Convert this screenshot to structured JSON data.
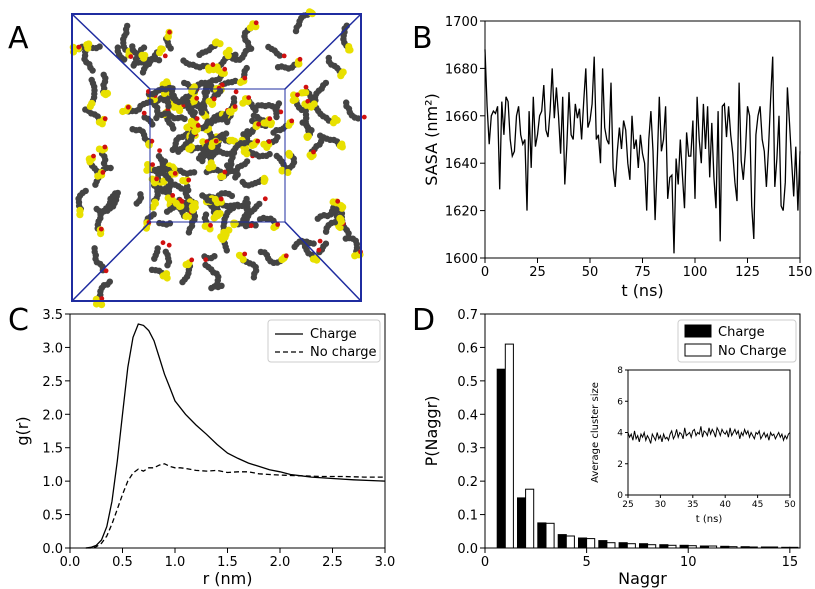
{
  "panels": {
    "a": {
      "letter": "A"
    },
    "b": {
      "letter": "B"
    },
    "c": {
      "letter": "C"
    },
    "d": {
      "letter": "D"
    }
  },
  "colors": {
    "box": "#1f2ca0",
    "carbon": "#444444",
    "sulfur": "#e8e000",
    "oxygen": "#d01010",
    "line": "#000000"
  },
  "chart_data": [
    {
      "id": "B",
      "type": "line",
      "xlabel": "t (ns)",
      "ylabel": "SASA (nm²)",
      "xlim": [
        0,
        150
      ],
      "ylim": [
        1600,
        1700
      ],
      "xticks": [
        0,
        25,
        50,
        75,
        100,
        125,
        150
      ],
      "yticks": [
        1600,
        1620,
        1640,
        1660,
        1680,
        1700
      ],
      "x_start": 0,
      "x_step": 1,
      "y": [
        1688,
        1664,
        1648,
        1660,
        1662,
        1661,
        1664,
        1629,
        1666,
        1652,
        1668,
        1666,
        1650,
        1643,
        1645,
        1660,
        1664,
        1652,
        1648,
        1650,
        1620,
        1662,
        1638,
        1668,
        1647,
        1652,
        1660,
        1662,
        1673,
        1654,
        1651,
        1662,
        1680,
        1659,
        1672,
        1660,
        1644,
        1668,
        1631,
        1648,
        1670,
        1652,
        1650,
        1665,
        1659,
        1663,
        1650,
        1666,
        1680,
        1655,
        1658,
        1665,
        1685,
        1650,
        1652,
        1640,
        1680,
        1655,
        1650,
        1648,
        1674,
        1638,
        1630,
        1645,
        1655,
        1646,
        1658,
        1654,
        1640,
        1633,
        1660,
        1646,
        1650,
        1638,
        1652,
        1644,
        1640,
        1620,
        1650,
        1662,
        1645,
        1616,
        1640,
        1668,
        1645,
        1650,
        1664,
        1625,
        1634,
        1635,
        1602,
        1642,
        1631,
        1650,
        1635,
        1621,
        1653,
        1643,
        1643,
        1658,
        1625,
        1668,
        1650,
        1640,
        1665,
        1646,
        1664,
        1634,
        1657,
        1634,
        1621,
        1662,
        1607,
        1664,
        1665,
        1651,
        1664,
        1652,
        1644,
        1632,
        1624,
        1674,
        1641,
        1633,
        1645,
        1664,
        1660,
        1622,
        1608,
        1652,
        1660,
        1664,
        1650,
        1645,
        1630,
        1646,
        1667,
        1685,
        1630,
        1642,
        1660,
        1622,
        1620,
        1632,
        1672,
        1657,
        1641,
        1626,
        1647,
        1620,
        1645
      ]
    },
    {
      "id": "C",
      "type": "line",
      "xlabel": "r (nm)",
      "ylabel": "g(r)",
      "xlim": [
        0,
        3
      ],
      "ylim": [
        0,
        3.5
      ],
      "xticks": [
        "0.0",
        "0.5",
        "1.0",
        "1.5",
        "2.0",
        "2.5",
        "3.0"
      ],
      "yticks": [
        "0.0",
        "0.5",
        "1.0",
        "1.5",
        "2.0",
        "2.5",
        "3.0",
        "3.5"
      ],
      "legend_position": "top-right",
      "series": [
        {
          "name": "Charge",
          "style": "solid",
          "x": [
            0.15,
            0.2,
            0.25,
            0.3,
            0.35,
            0.4,
            0.45,
            0.5,
            0.55,
            0.6,
            0.65,
            0.7,
            0.75,
            0.8,
            0.85,
            0.9,
            0.95,
            1.0,
            1.1,
            1.2,
            1.3,
            1.4,
            1.5,
            1.6,
            1.7,
            1.8,
            1.9,
            2.0,
            2.1,
            2.2,
            2.3,
            2.5,
            2.7,
            3.0
          ],
          "y": [
            0.0,
            0.01,
            0.04,
            0.12,
            0.32,
            0.7,
            1.3,
            2.0,
            2.7,
            3.15,
            3.35,
            3.33,
            3.25,
            3.1,
            2.85,
            2.6,
            2.4,
            2.2,
            2.0,
            1.84,
            1.7,
            1.55,
            1.42,
            1.34,
            1.27,
            1.22,
            1.17,
            1.14,
            1.1,
            1.08,
            1.06,
            1.04,
            1.02,
            1.0
          ]
        },
        {
          "name": "No charge",
          "style": "dashed",
          "x": [
            0.15,
            0.2,
            0.25,
            0.3,
            0.35,
            0.4,
            0.45,
            0.5,
            0.55,
            0.6,
            0.65,
            0.7,
            0.75,
            0.8,
            0.85,
            0.9,
            0.95,
            1.0,
            1.05,
            1.1,
            1.2,
            1.3,
            1.4,
            1.5,
            1.6,
            1.7,
            1.8,
            1.9,
            2.0,
            2.2,
            2.4,
            2.6,
            2.8,
            3.0
          ],
          "y": [
            0.0,
            0.0,
            0.02,
            0.07,
            0.18,
            0.36,
            0.58,
            0.8,
            1.0,
            1.12,
            1.18,
            1.15,
            1.2,
            1.2,
            1.24,
            1.26,
            1.22,
            1.2,
            1.2,
            1.19,
            1.16,
            1.15,
            1.16,
            1.13,
            1.14,
            1.14,
            1.11,
            1.1,
            1.09,
            1.08,
            1.07,
            1.07,
            1.06,
            1.06
          ]
        }
      ]
    },
    {
      "id": "D",
      "type": "bar",
      "xlabel": "Naggr",
      "ylabel": "P(Naggr)",
      "xlim": [
        0,
        15.5
      ],
      "ylim": [
        0,
        0.7
      ],
      "xticks": [
        0,
        5,
        10,
        15
      ],
      "yticks": [
        "0.0",
        "0.1",
        "0.2",
        "0.3",
        "0.4",
        "0.5",
        "0.6",
        "0.7"
      ],
      "legend_position": "top-right",
      "categories": [
        1,
        2,
        3,
        4,
        5,
        6,
        7,
        8,
        9,
        10,
        11,
        12,
        13,
        14,
        15
      ],
      "series": [
        {
          "name": "Charge",
          "fill": "#000000",
          "values": [
            0.535,
            0.15,
            0.075,
            0.04,
            0.03,
            0.022,
            0.016,
            0.013,
            0.01,
            0.008,
            0.006,
            0.005,
            0.004,
            0.003,
            0.002
          ]
        },
        {
          "name": "No Charge",
          "fill": "#ffffff",
          "values": [
            0.61,
            0.176,
            0.074,
            0.036,
            0.028,
            0.016,
            0.013,
            0.01,
            0.008,
            0.007,
            0.006,
            0.004,
            0.003,
            0.003,
            0.002
          ]
        }
      ],
      "inset": {
        "type": "line",
        "xlabel": "t (ns)",
        "ylabel": "Average cluster size",
        "xlim": [
          25,
          50
        ],
        "ylim": [
          0,
          8
        ],
        "xticks": [
          25,
          30,
          35,
          40,
          45,
          50
        ],
        "yticks": [
          0,
          2,
          4,
          6,
          8
        ],
        "x_start": 25,
        "x_step": 0.25,
        "y": [
          4.0,
          3.7,
          3.9,
          3.5,
          4.1,
          3.6,
          3.8,
          3.4,
          3.9,
          3.7,
          4.0,
          3.5,
          3.8,
          3.6,
          3.3,
          3.9,
          3.7,
          3.5,
          4.0,
          3.6,
          3.8,
          3.4,
          3.9,
          3.6,
          3.7,
          3.5,
          3.9,
          4.1,
          3.6,
          3.8,
          4.2,
          3.7,
          4.0,
          3.9,
          3.6,
          4.3,
          3.8,
          3.9,
          4.0,
          3.7,
          4.1,
          4.2,
          3.8,
          4.0,
          3.9,
          4.4,
          3.7,
          4.1,
          4.0,
          3.8,
          4.3,
          3.9,
          4.2,
          4.0,
          3.7,
          4.3,
          4.1,
          3.8,
          4.2,
          4.0,
          3.9,
          4.1,
          3.7,
          4.3,
          3.8,
          4.0,
          4.2,
          3.9,
          4.1,
          3.6,
          4.0,
          3.8,
          4.2,
          3.9,
          4.1,
          3.7,
          4.0,
          3.8,
          3.6,
          4.0,
          3.9,
          4.1,
          3.6,
          3.8,
          4.0,
          3.7,
          3.9,
          3.5,
          4.0,
          3.8,
          3.9,
          3.6,
          3.8,
          4.0,
          3.7,
          3.9,
          3.5,
          3.8,
          3.6,
          3.9,
          4.0
        ]
      }
    }
  ]
}
